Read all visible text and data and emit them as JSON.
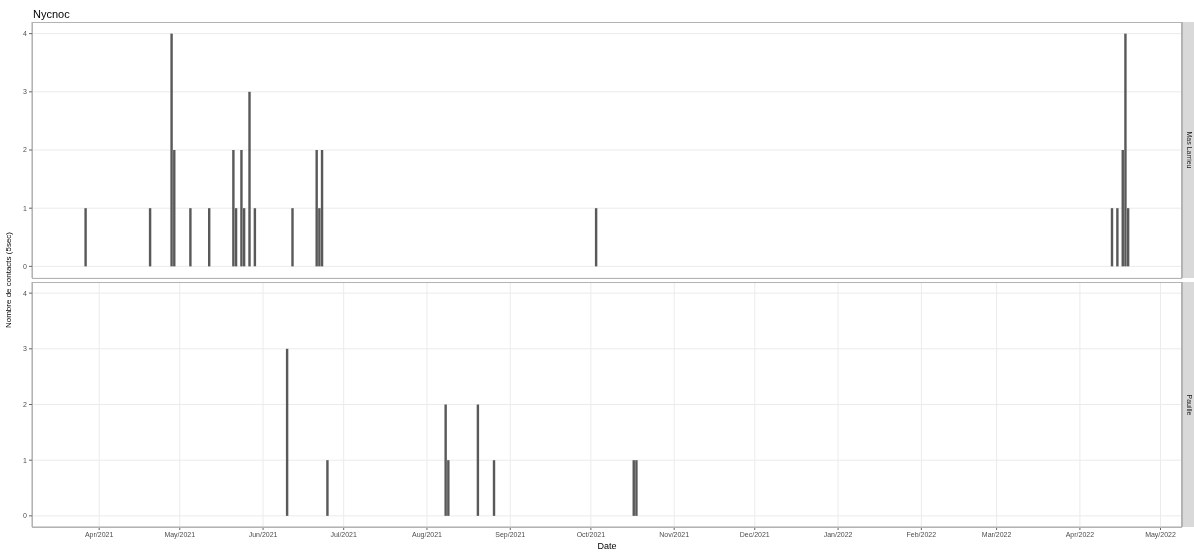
{
  "chart_data": [
    {
      "type": "bar",
      "title": "Nycnoc",
      "ylabel": "Nombre de contacts (5sec)",
      "annotations": [
        "Mas Larrieu"
      ],
      "color": "#595959",
      "grid": true,
      "tick_labels": "y",
      "x": [
        "2021-03-27",
        "2021-04-20",
        "2021-04-28",
        "2021-04-29",
        "2021-05-05",
        "2021-05-12",
        "2021-05-21",
        "2021-05-22",
        "2021-05-24",
        "2021-05-25",
        "2021-05-27",
        "2021-05-29",
        "2021-06-12",
        "2021-06-21",
        "2021-06-22",
        "2021-06-23",
        "2021-10-03",
        "2022-04-13",
        "2022-04-15",
        "2022-04-17",
        "2022-04-18",
        "2022-04-19"
      ],
      "values": [
        1,
        1,
        4,
        2,
        1,
        1,
        2,
        1,
        2,
        1,
        3,
        1,
        1,
        2,
        1,
        2,
        1,
        1,
        1,
        2,
        4,
        1
      ],
      "xlim": [
        "2021-03-07",
        "2022-05-09"
      ],
      "xticks": [
        {
          "value": "2021-04-01",
          "label": null
        },
        {
          "value": "2021-05-01",
          "label": null
        },
        {
          "value": "2021-06-01",
          "label": null
        },
        {
          "value": "2021-07-01",
          "label": null
        },
        {
          "value": "2021-08-01",
          "label": null
        },
        {
          "value": "2021-09-01",
          "label": null
        },
        {
          "value": "2021-10-01",
          "label": null
        },
        {
          "value": "2021-11-01",
          "label": null
        },
        {
          "value": "2021-12-01",
          "label": null
        },
        {
          "value": "2022-01-01",
          "label": null
        },
        {
          "value": "2022-02-01",
          "label": null
        },
        {
          "value": "2022-03-01",
          "label": null
        },
        {
          "value": "2022-04-01",
          "label": null
        },
        {
          "value": "2022-05-01",
          "label": null
        }
      ],
      "ylim": [
        -0.2,
        4.2
      ],
      "yticks": [
        0,
        1,
        2,
        3,
        4
      ]
    },
    {
      "type": "bar",
      "xlabel": "Date",
      "annotations": [
        "Pauille"
      ],
      "color": "#595959",
      "grid": true,
      "x": [
        "2021-06-10",
        "2021-06-25",
        "2021-08-08",
        "2021-08-09",
        "2021-08-20",
        "2021-08-26",
        "2021-10-17",
        "2021-10-18"
      ],
      "values": [
        3,
        1,
        2,
        1,
        2,
        1,
        1,
        1
      ],
      "xlim": [
        "2021-03-07",
        "2022-05-09"
      ],
      "xticks": [
        {
          "value": "2021-04-01",
          "label": "Apr/2021"
        },
        {
          "value": "2021-05-01",
          "label": "May/2021"
        },
        {
          "value": "2021-06-01",
          "label": "Jun/2021"
        },
        {
          "value": "2021-07-01",
          "label": "Jul/2021"
        },
        {
          "value": "2021-08-01",
          "label": "Aug/2021"
        },
        {
          "value": "2021-09-01",
          "label": "Sep/2021"
        },
        {
          "value": "2021-10-01",
          "label": "Oct/2021"
        },
        {
          "value": "2021-11-01",
          "label": "Nov/2021"
        },
        {
          "value": "2021-12-01",
          "label": "Dec/2021"
        },
        {
          "value": "2022-01-01",
          "label": "Jan/2022"
        },
        {
          "value": "2022-02-01",
          "label": "Feb/2022"
        },
        {
          "value": "2022-03-01",
          "label": "Mar/2022"
        },
        {
          "value": "2022-04-01",
          "label": "Apr/2022"
        },
        {
          "value": "2022-05-01",
          "label": "May/2022"
        }
      ],
      "ylim": [
        -0.2,
        4.2
      ],
      "yticks": [
        0,
        1,
        2,
        3,
        4
      ]
    }
  ]
}
